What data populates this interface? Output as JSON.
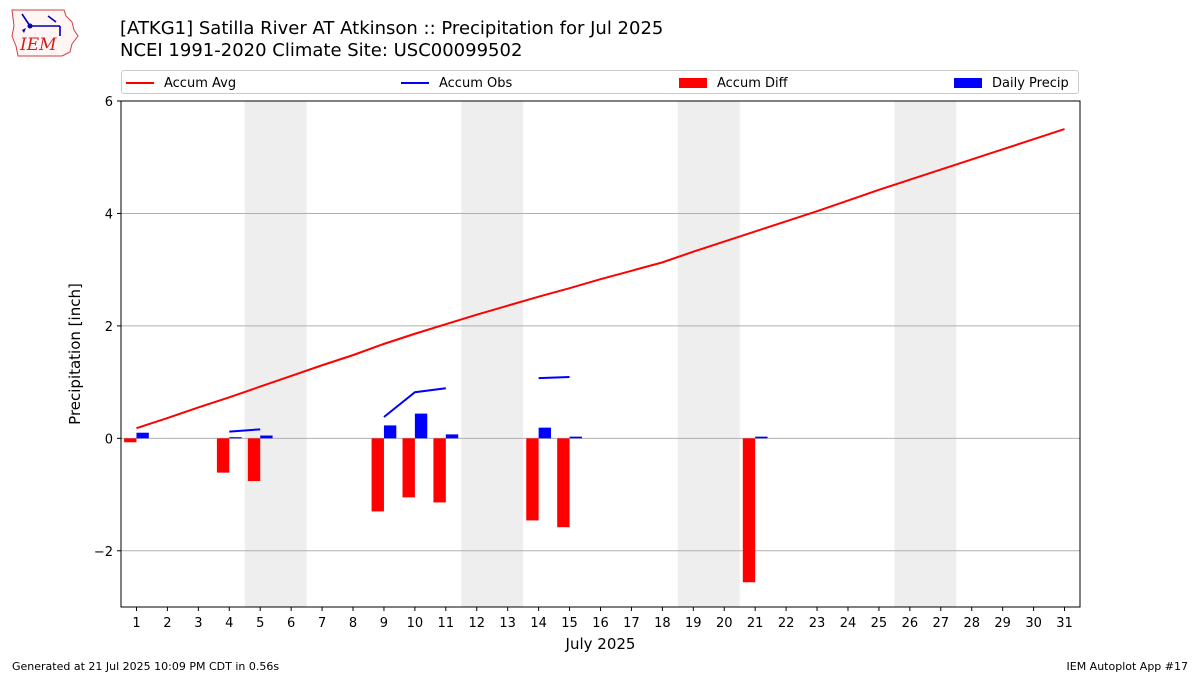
{
  "header": {
    "title_line1": "[ATKG1] Satilla River  AT Atkinson :: Precipitation for Jul 2025",
    "title_line2": "NCEI 1991-2020 Climate Site: USC00099502"
  },
  "logo": {
    "text": "IEM"
  },
  "legend": [
    {
      "label": "Accum Avg",
      "kind": "line",
      "color": "#ff0000"
    },
    {
      "label": "Accum Obs",
      "kind": "line",
      "color": "#0000ff"
    },
    {
      "label": "Accum Diff",
      "kind": "box",
      "color": "#ff0000"
    },
    {
      "label": "Daily Precip",
      "kind": "box",
      "color": "#0000ff"
    }
  ],
  "footer": {
    "left": "Generated at 21 Jul 2025 10:09 PM CDT in 0.56s",
    "right": "IEM Autoplot App #17"
  },
  "chart_data": {
    "type": "bar",
    "xlabel": "July 2025",
    "ylabel": "Precipitation [inch]",
    "ylim": [
      -3.0,
      6.0
    ],
    "xlim": [
      0.5,
      31.5
    ],
    "yticks": [
      -2,
      0,
      2,
      4,
      6
    ],
    "ytick_labels": [
      "−2",
      "0",
      "2",
      "4",
      "6"
    ],
    "xticks": [
      1,
      2,
      3,
      4,
      5,
      6,
      7,
      8,
      9,
      10,
      11,
      12,
      13,
      14,
      15,
      16,
      17,
      18,
      19,
      20,
      21,
      22,
      23,
      24,
      25,
      26,
      27,
      28,
      29,
      30,
      31
    ],
    "grid": "horizontal",
    "weekend_shading": [
      [
        4.5,
        6.5
      ],
      [
        11.5,
        13.5
      ],
      [
        18.5,
        20.5
      ],
      [
        25.5,
        27.5
      ]
    ],
    "colors": {
      "avg": "#ff0000",
      "obs": "#0000ff",
      "diff": "#ff0000",
      "daily": "#0000ff",
      "shade": "#eeeeee",
      "grid": "#b0b0b0"
    },
    "accum_avg": {
      "days": [
        1,
        2,
        3,
        4,
        5,
        6,
        7,
        8,
        9,
        10,
        11,
        12,
        13,
        14,
        15,
        16,
        17,
        18,
        19,
        20,
        21,
        22,
        23,
        24,
        25,
        26,
        27,
        28,
        29,
        30,
        31
      ],
      "values": [
        0.18,
        0.36,
        0.55,
        0.73,
        0.92,
        1.11,
        1.3,
        1.48,
        1.68,
        1.86,
        2.03,
        2.2,
        2.36,
        2.52,
        2.67,
        2.83,
        2.98,
        3.13,
        3.32,
        3.5,
        3.68,
        3.86,
        4.04,
        4.23,
        4.42,
        4.6,
        4.78,
        4.96,
        5.14,
        5.32,
        5.5
      ]
    },
    "accum_obs": [
      {
        "days": [
          4,
          5
        ],
        "values": [
          0.12,
          0.16
        ]
      },
      {
        "days": [
          9,
          10,
          11
        ],
        "values": [
          0.38,
          0.82,
          0.89
        ]
      },
      {
        "days": [
          14,
          15
        ],
        "values": [
          1.07,
          1.09
        ]
      }
    ],
    "accum_diff": {
      "days": [
        1,
        4,
        5,
        9,
        10,
        11,
        14,
        15,
        21
      ],
      "values": [
        -0.07,
        -0.61,
        -0.76,
        -1.3,
        -1.05,
        -1.14,
        -1.46,
        -1.58,
        -2.56
      ]
    },
    "daily_precip": {
      "days": [
        1,
        4,
        5,
        9,
        10,
        11,
        14,
        15,
        21
      ],
      "values": [
        0.1,
        0.02,
        0.05,
        0.23,
        0.44,
        0.07,
        0.19,
        0.03,
        0.03
      ]
    }
  }
}
